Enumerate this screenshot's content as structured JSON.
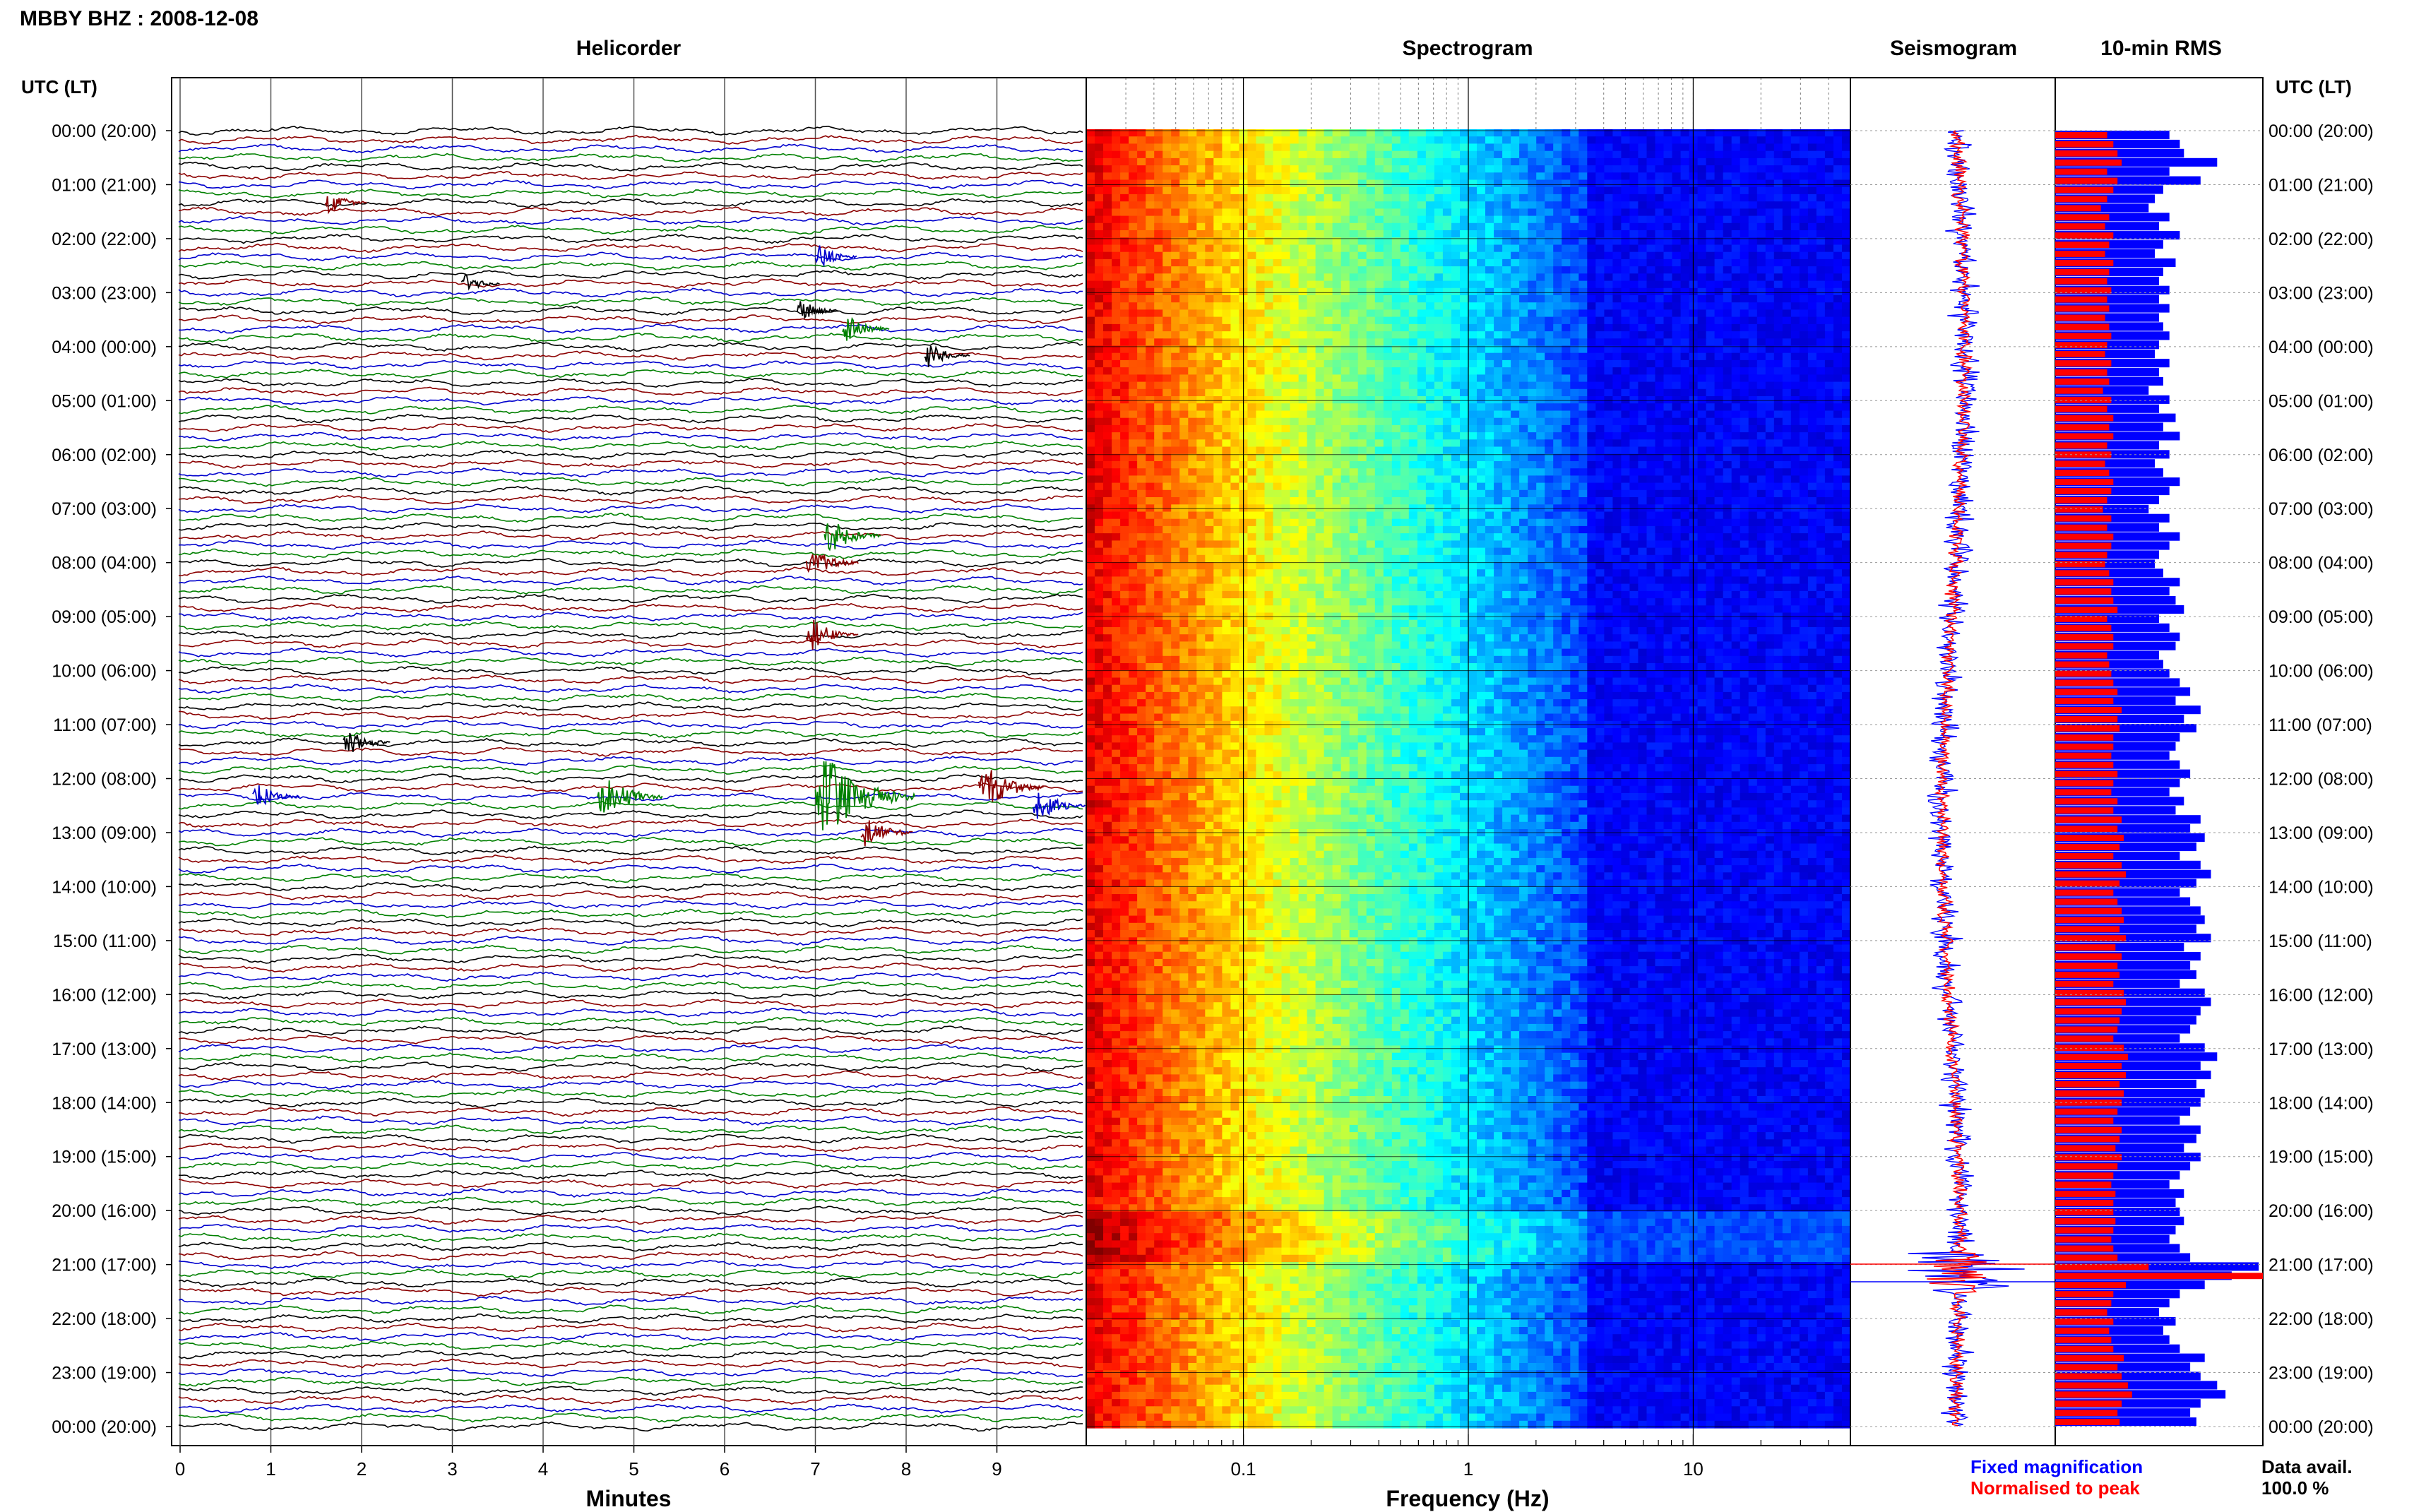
{
  "header": {
    "title": "MBBY BHZ : 2008-12-08"
  },
  "panels": {
    "helicorder": {
      "title": "Helicorder",
      "xlabel": "Minutes"
    },
    "spectrogram": {
      "title": "Spectrogram",
      "xlabel": "Frequency (Hz)"
    },
    "seismogram": {
      "title": "Seismogram"
    },
    "rms": {
      "title": "10-min RMS"
    }
  },
  "utc_header_left": "UTC (LT)",
  "utc_header_right": "UTC (LT)",
  "legend": {
    "fixed": "Fixed magnification",
    "normalised": "Normalised to peak",
    "fixed_color": "#0000ff",
    "normalised_color": "#ff0000"
  },
  "data_avail": {
    "label": "Data avail.",
    "value": "100.0 %"
  },
  "chart_data": [
    {
      "type": "line",
      "name": "helicorder",
      "x_ticks": [
        "0",
        "1",
        "2",
        "3",
        "4",
        "5",
        "6",
        "7",
        "8",
        "9"
      ],
      "xlim": [
        0,
        10
      ],
      "y_tick_labels": [
        "00:00 (20:00)",
        "01:00 (21:00)",
        "02:00 (22:00)",
        "03:00 (23:00)",
        "04:00 (00:00)",
        "05:00 (01:00)",
        "06:00 (02:00)",
        "07:00 (03:00)",
        "08:00 (04:00)",
        "09:00 (05:00)",
        "10:00 (06:00)",
        "11:00 (07:00)",
        "12:00 (08:00)",
        "13:00 (09:00)",
        "14:00 (10:00)",
        "15:00 (11:00)",
        "16:00 (12:00)",
        "17:00 (13:00)",
        "18:00 (14:00)",
        "19:00 (15:00)",
        "20:00 (16:00)",
        "21:00 (17:00)",
        "22:00 (18:00)",
        "23:00 (19:00)",
        "00:00 (20:00)"
      ],
      "trace_colors": [
        "#000000",
        "#8b0000",
        "#0000cd",
        "#008000"
      ],
      "traces_per_hour": 6,
      "events": [
        {
          "row": 8,
          "minute": 1.6,
          "color": "#8b0000",
          "amp": 1.2
        },
        {
          "row": 20,
          "minute": 6.8,
          "color": "#000000",
          "amp": 1.2
        },
        {
          "row": 17,
          "minute": 3.1,
          "color": "#000000",
          "amp": 1.0
        },
        {
          "row": 22,
          "minute": 7.3,
          "color": "#008000",
          "amp": 1.5
        },
        {
          "row": 25,
          "minute": 8.2,
          "color": "#000000",
          "amp": 1.4
        },
        {
          "row": 14,
          "minute": 7.0,
          "color": "#0000cd",
          "amp": 1.2
        },
        {
          "row": 45,
          "minute": 7.1,
          "color": "#008000",
          "amp": 2.0
        },
        {
          "row": 48,
          "minute": 6.9,
          "color": "#8b0000",
          "amp": 1.8
        },
        {
          "row": 56,
          "minute": 6.9,
          "color": "#8b0000",
          "amp": 1.8
        },
        {
          "row": 68,
          "minute": 1.8,
          "color": "#000000",
          "amp": 1.5
        },
        {
          "row": 74,
          "minute": 0.8,
          "color": "#0000cd",
          "amp": 1.5
        },
        {
          "row": 74,
          "minute": 4.6,
          "color": "#008000",
          "amp": 2.5
        },
        {
          "row": 74,
          "minute": 7.0,
          "color": "#008000",
          "amp": 4.5
        },
        {
          "row": 73,
          "minute": 8.8,
          "color": "#8b0000",
          "amp": 2.5
        },
        {
          "row": 75,
          "minute": 9.4,
          "color": "#0000cd",
          "amp": 1.8
        },
        {
          "row": 78,
          "minute": 7.5,
          "color": "#8b0000",
          "amp": 1.8
        }
      ]
    },
    {
      "type": "heatmap",
      "name": "spectrogram",
      "x_scale": "log",
      "xlim": [
        0.02,
        50
      ],
      "x_ticks": [
        "0.1",
        "1",
        "10"
      ],
      "colormap": "jet"
    },
    {
      "type": "line",
      "name": "seismogram",
      "series": [
        {
          "name": "Fixed magnification",
          "color": "#0000ff"
        },
        {
          "name": "Normalised to peak",
          "color": "#ff0000"
        }
      ]
    },
    {
      "type": "bar",
      "name": "10-min RMS",
      "orientation": "horizontal",
      "blue_values": [
        0.55,
        0.6,
        0.62,
        0.78,
        0.55,
        0.7,
        0.52,
        0.48,
        0.45,
        0.55,
        0.5,
        0.6,
        0.52,
        0.48,
        0.58,
        0.52,
        0.5,
        0.55,
        0.5,
        0.55,
        0.5,
        0.52,
        0.55,
        0.5,
        0.48,
        0.55,
        0.5,
        0.52,
        0.45,
        0.55,
        0.5,
        0.58,
        0.52,
        0.6,
        0.5,
        0.55,
        0.48,
        0.52,
        0.6,
        0.55,
        0.5,
        0.45,
        0.55,
        0.5,
        0.6,
        0.55,
        0.5,
        0.48,
        0.52,
        0.6,
        0.55,
        0.58,
        0.62,
        0.5,
        0.55,
        0.6,
        0.58,
        0.5,
        0.52,
        0.55,
        0.6,
        0.65,
        0.58,
        0.7,
        0.62,
        0.68,
        0.6,
        0.58,
        0.55,
        0.6,
        0.65,
        0.6,
        0.55,
        0.62,
        0.58,
        0.7,
        0.65,
        0.72,
        0.68,
        0.6,
        0.7,
        0.75,
        0.68,
        0.6,
        0.65,
        0.7,
        0.72,
        0.68,
        0.75,
        0.62,
        0.7,
        0.65,
        0.68,
        0.6,
        0.72,
        0.75,
        0.7,
        0.68,
        0.65,
        0.6,
        0.72,
        0.78,
        0.7,
        0.75,
        0.68,
        0.72,
        0.7,
        0.65,
        0.6,
        0.7,
        0.68,
        0.62,
        0.7,
        0.65,
        0.6,
        0.55,
        0.62,
        0.58,
        0.6,
        0.62,
        0.58,
        0.55,
        0.6,
        0.65,
        0.98,
        0.85,
        0.72,
        0.6,
        0.55,
        0.5,
        0.58,
        0.52,
        0.55,
        0.6,
        0.72,
        0.65,
        0.7,
        0.78,
        0.82,
        0.7,
        0.65,
        0.68
      ],
      "red_values": [
        0.25,
        0.28,
        0.3,
        0.32,
        0.25,
        0.3,
        0.28,
        0.25,
        0.22,
        0.26,
        0.24,
        0.28,
        0.26,
        0.24,
        0.28,
        0.26,
        0.25,
        0.27,
        0.25,
        0.26,
        0.24,
        0.26,
        0.27,
        0.25,
        0.24,
        0.27,
        0.25,
        0.26,
        0.23,
        0.27,
        0.25,
        0.28,
        0.26,
        0.28,
        0.25,
        0.27,
        0.24,
        0.26,
        0.28,
        0.27,
        0.25,
        0.23,
        0.27,
        0.25,
        0.28,
        0.27,
        0.25,
        0.24,
        0.26,
        0.28,
        0.27,
        0.28,
        0.3,
        0.25,
        0.27,
        0.28,
        0.28,
        0.25,
        0.26,
        0.27,
        0.28,
        0.3,
        0.28,
        0.32,
        0.3,
        0.31,
        0.28,
        0.28,
        0.27,
        0.28,
        0.3,
        0.28,
        0.27,
        0.3,
        0.28,
        0.32,
        0.3,
        0.33,
        0.31,
        0.28,
        0.32,
        0.34,
        0.31,
        0.28,
        0.3,
        0.32,
        0.33,
        0.31,
        0.34,
        0.29,
        0.32,
        0.3,
        0.31,
        0.28,
        0.33,
        0.34,
        0.32,
        0.31,
        0.3,
        0.28,
        0.33,
        0.35,
        0.32,
        0.34,
        0.31,
        0.33,
        0.32,
        0.3,
        0.28,
        0.32,
        0.31,
        0.29,
        0.32,
        0.3,
        0.28,
        0.27,
        0.29,
        0.28,
        0.28,
        0.29,
        0.28,
        0.27,
        0.28,
        0.3,
        0.45,
        1.0,
        0.34,
        0.28,
        0.27,
        0.25,
        0.28,
        0.26,
        0.27,
        0.28,
        0.33,
        0.3,
        0.32,
        0.35,
        0.37,
        0.32,
        0.3,
        0.31
      ]
    }
  ]
}
